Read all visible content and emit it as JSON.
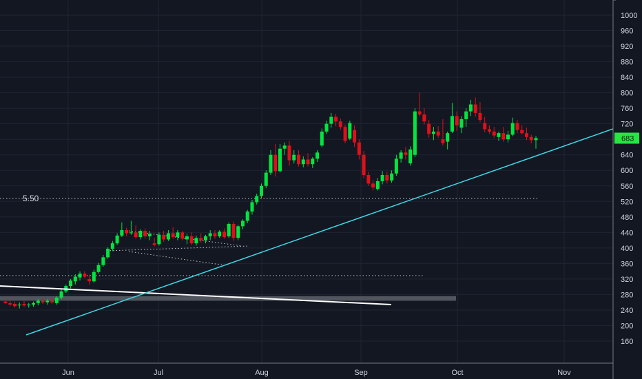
{
  "colors": {
    "background": "#131722",
    "grid": "#1f2433",
    "axis_line": "#787b86",
    "up": "#00e640",
    "down": "#e0101a",
    "trendline": "#3fd8e6",
    "white_line": "#ffffff",
    "dotted": "#c8c8c8",
    "zone": "#5d6068",
    "badge": "#26e640"
  },
  "chart_data": {
    "type": "candlestick",
    "y_axis": {
      "ticks": [
        "1000",
        "960",
        "920",
        "880",
        "840",
        "800",
        "760",
        "720",
        "680",
        "640",
        "600",
        "560",
        "520",
        "480",
        "440",
        "400",
        "360",
        "320",
        "280",
        "240",
        "200",
        "160"
      ],
      "range": [
        140,
        1020
      ],
      "side": "right"
    },
    "x_axis": {
      "ticks": [
        "Jun",
        "Jul",
        "Aug",
        "Sep",
        "Oct",
        "Nov"
      ]
    },
    "current_price": "683",
    "level_label": "5.50",
    "grid": true,
    "candles": [
      {
        "o": 262,
        "h": 268,
        "l": 256,
        "c": 258
      },
      {
        "o": 258,
        "h": 264,
        "l": 250,
        "c": 254
      },
      {
        "o": 256,
        "h": 262,
        "l": 246,
        "c": 250
      },
      {
        "o": 252,
        "h": 260,
        "l": 244,
        "c": 254
      },
      {
        "o": 256,
        "h": 264,
        "l": 248,
        "c": 252
      },
      {
        "o": 252,
        "h": 258,
        "l": 246,
        "c": 254
      },
      {
        "o": 254,
        "h": 262,
        "l": 248,
        "c": 258
      },
      {
        "o": 258,
        "h": 268,
        "l": 252,
        "c": 264
      },
      {
        "o": 264,
        "h": 270,
        "l": 256,
        "c": 260
      },
      {
        "o": 260,
        "h": 268,
        "l": 254,
        "c": 264
      },
      {
        "o": 264,
        "h": 272,
        "l": 256,
        "c": 260
      },
      {
        "o": 258,
        "h": 276,
        "l": 254,
        "c": 272
      },
      {
        "o": 272,
        "h": 292,
        "l": 268,
        "c": 288
      },
      {
        "o": 288,
        "h": 306,
        "l": 284,
        "c": 302
      },
      {
        "o": 302,
        "h": 320,
        "l": 296,
        "c": 316
      },
      {
        "o": 314,
        "h": 332,
        "l": 306,
        "c": 326
      },
      {
        "o": 324,
        "h": 340,
        "l": 316,
        "c": 334
      },
      {
        "o": 334,
        "h": 340,
        "l": 322,
        "c": 326
      },
      {
        "o": 320,
        "h": 330,
        "l": 306,
        "c": 314
      },
      {
        "o": 314,
        "h": 344,
        "l": 310,
        "c": 338
      },
      {
        "o": 338,
        "h": 362,
        "l": 334,
        "c": 356
      },
      {
        "o": 356,
        "h": 382,
        "l": 352,
        "c": 376
      },
      {
        "o": 376,
        "h": 402,
        "l": 372,
        "c": 398
      },
      {
        "o": 398,
        "h": 418,
        "l": 392,
        "c": 412
      },
      {
        "o": 412,
        "h": 438,
        "l": 408,
        "c": 432
      },
      {
        "o": 432,
        "h": 466,
        "l": 428,
        "c": 446
      },
      {
        "o": 446,
        "h": 452,
        "l": 430,
        "c": 438
      },
      {
        "o": 438,
        "h": 470,
        "l": 434,
        "c": 440
      },
      {
        "o": 440,
        "h": 458,
        "l": 424,
        "c": 428
      },
      {
        "o": 428,
        "h": 448,
        "l": 422,
        "c": 444
      },
      {
        "o": 444,
        "h": 450,
        "l": 424,
        "c": 430
      },
      {
        "o": 430,
        "h": 444,
        "l": 420,
        "c": 436
      },
      {
        "o": 412,
        "h": 426,
        "l": 404,
        "c": 408
      },
      {
        "o": 410,
        "h": 440,
        "l": 406,
        "c": 434
      },
      {
        "o": 434,
        "h": 444,
        "l": 416,
        "c": 422
      },
      {
        "o": 422,
        "h": 446,
        "l": 418,
        "c": 438
      },
      {
        "o": 438,
        "h": 454,
        "l": 424,
        "c": 428
      },
      {
        "o": 428,
        "h": 446,
        "l": 420,
        "c": 440
      },
      {
        "o": 440,
        "h": 444,
        "l": 420,
        "c": 424
      },
      {
        "o": 422,
        "h": 436,
        "l": 410,
        "c": 430
      },
      {
        "o": 430,
        "h": 440,
        "l": 408,
        "c": 412
      },
      {
        "o": 412,
        "h": 432,
        "l": 406,
        "c": 426
      },
      {
        "o": 426,
        "h": 438,
        "l": 414,
        "c": 420
      },
      {
        "o": 420,
        "h": 434,
        "l": 412,
        "c": 430
      },
      {
        "o": 430,
        "h": 446,
        "l": 420,
        "c": 438
      },
      {
        "o": 438,
        "h": 446,
        "l": 424,
        "c": 430
      },
      {
        "o": 430,
        "h": 446,
        "l": 426,
        "c": 442
      },
      {
        "o": 442,
        "h": 450,
        "l": 424,
        "c": 428
      },
      {
        "o": 430,
        "h": 466,
        "l": 426,
        "c": 462
      },
      {
        "o": 462,
        "h": 468,
        "l": 418,
        "c": 426
      },
      {
        "o": 426,
        "h": 460,
        "l": 420,
        "c": 456
      },
      {
        "o": 456,
        "h": 474,
        "l": 448,
        "c": 470
      },
      {
        "o": 470,
        "h": 498,
        "l": 464,
        "c": 494
      },
      {
        "o": 494,
        "h": 524,
        "l": 486,
        "c": 518
      },
      {
        "o": 518,
        "h": 540,
        "l": 512,
        "c": 534
      },
      {
        "o": 534,
        "h": 566,
        "l": 528,
        "c": 560
      },
      {
        "o": 560,
        "h": 600,
        "l": 554,
        "c": 594
      },
      {
        "o": 594,
        "h": 652,
        "l": 588,
        "c": 640
      },
      {
        "o": 640,
        "h": 668,
        "l": 584,
        "c": 598
      },
      {
        "o": 598,
        "h": 668,
        "l": 594,
        "c": 656
      },
      {
        "o": 656,
        "h": 672,
        "l": 640,
        "c": 664
      },
      {
        "o": 664,
        "h": 676,
        "l": 612,
        "c": 626
      },
      {
        "o": 626,
        "h": 652,
        "l": 618,
        "c": 640
      },
      {
        "o": 640,
        "h": 652,
        "l": 610,
        "c": 616
      },
      {
        "o": 616,
        "h": 636,
        "l": 608,
        "c": 628
      },
      {
        "o": 628,
        "h": 644,
        "l": 610,
        "c": 616
      },
      {
        "o": 616,
        "h": 634,
        "l": 606,
        "c": 630
      },
      {
        "o": 630,
        "h": 652,
        "l": 622,
        "c": 646
      },
      {
        "o": 664,
        "h": 708,
        "l": 660,
        "c": 700
      },
      {
        "o": 700,
        "h": 728,
        "l": 694,
        "c": 720
      },
      {
        "o": 720,
        "h": 748,
        "l": 710,
        "c": 738
      },
      {
        "o": 738,
        "h": 746,
        "l": 714,
        "c": 726
      },
      {
        "o": 726,
        "h": 734,
        "l": 704,
        "c": 712
      },
      {
        "o": 712,
        "h": 718,
        "l": 670,
        "c": 676
      },
      {
        "o": 682,
        "h": 728,
        "l": 678,
        "c": 722
      },
      {
        "o": 704,
        "h": 716,
        "l": 660,
        "c": 672
      },
      {
        "o": 672,
        "h": 680,
        "l": 628,
        "c": 640
      },
      {
        "o": 640,
        "h": 650,
        "l": 580,
        "c": 588
      },
      {
        "o": 588,
        "h": 596,
        "l": 560,
        "c": 566
      },
      {
        "o": 566,
        "h": 574,
        "l": 548,
        "c": 556
      },
      {
        "o": 552,
        "h": 580,
        "l": 548,
        "c": 572
      },
      {
        "o": 572,
        "h": 598,
        "l": 564,
        "c": 588
      },
      {
        "o": 588,
        "h": 596,
        "l": 566,
        "c": 574
      },
      {
        "o": 574,
        "h": 600,
        "l": 568,
        "c": 592
      },
      {
        "o": 592,
        "h": 640,
        "l": 586,
        "c": 630
      },
      {
        "o": 630,
        "h": 652,
        "l": 620,
        "c": 646
      },
      {
        "o": 646,
        "h": 660,
        "l": 628,
        "c": 640
      },
      {
        "o": 618,
        "h": 662,
        "l": 612,
        "c": 654
      },
      {
        "o": 640,
        "h": 760,
        "l": 634,
        "c": 752
      },
      {
        "o": 752,
        "h": 800,
        "l": 740,
        "c": 744
      },
      {
        "o": 744,
        "h": 760,
        "l": 718,
        "c": 726
      },
      {
        "o": 720,
        "h": 730,
        "l": 684,
        "c": 694
      },
      {
        "o": 694,
        "h": 712,
        "l": 678,
        "c": 700
      },
      {
        "o": 700,
        "h": 714,
        "l": 684,
        "c": 690
      },
      {
        "o": 680,
        "h": 732,
        "l": 664,
        "c": 670
      },
      {
        "o": 674,
        "h": 700,
        "l": 654,
        "c": 696
      },
      {
        "o": 700,
        "h": 774,
        "l": 696,
        "c": 740
      },
      {
        "o": 740,
        "h": 752,
        "l": 702,
        "c": 716
      },
      {
        "o": 710,
        "h": 740,
        "l": 696,
        "c": 732
      },
      {
        "o": 732,
        "h": 760,
        "l": 712,
        "c": 752
      },
      {
        "o": 752,
        "h": 782,
        "l": 740,
        "c": 770
      },
      {
        "o": 770,
        "h": 788,
        "l": 738,
        "c": 748
      },
      {
        "o": 748,
        "h": 776,
        "l": 724,
        "c": 730
      },
      {
        "o": 722,
        "h": 738,
        "l": 698,
        "c": 706
      },
      {
        "o": 706,
        "h": 716,
        "l": 694,
        "c": 700
      },
      {
        "o": 700,
        "h": 712,
        "l": 684,
        "c": 690
      },
      {
        "o": 686,
        "h": 700,
        "l": 676,
        "c": 696
      },
      {
        "o": 696,
        "h": 712,
        "l": 674,
        "c": 680
      },
      {
        "o": 680,
        "h": 702,
        "l": 672,
        "c": 692
      },
      {
        "o": 692,
        "h": 736,
        "l": 688,
        "c": 722
      },
      {
        "o": 722,
        "h": 730,
        "l": 696,
        "c": 704
      },
      {
        "o": 704,
        "h": 716,
        "l": 692,
        "c": 696
      },
      {
        "o": 696,
        "h": 710,
        "l": 678,
        "c": 686
      },
      {
        "o": 686,
        "h": 692,
        "l": 670,
        "c": 678
      },
      {
        "o": 678,
        "h": 688,
        "l": 656,
        "c": 683
      }
    ]
  }
}
